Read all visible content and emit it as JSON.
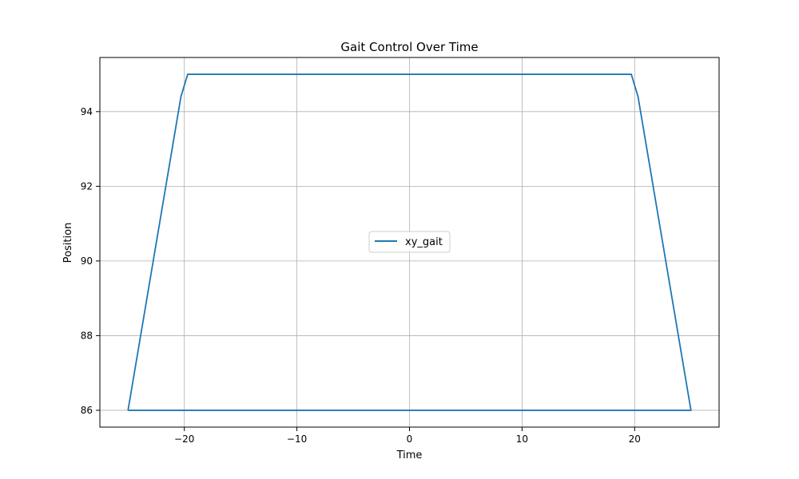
{
  "chart_data": {
    "type": "line",
    "title": "Gait Control Over Time",
    "xlabel": "Time",
    "ylabel": "Position",
    "xlim": [
      -27.5,
      27.5
    ],
    "ylim": [
      85.55,
      95.45
    ],
    "xticks": [
      -20,
      -10,
      0,
      10,
      20
    ],
    "yticks": [
      86,
      88,
      90,
      92,
      94
    ],
    "xtick_labels": [
      "−20",
      "−10",
      "0",
      "10",
      "20"
    ],
    "ytick_labels": [
      "86",
      "88",
      "90",
      "92",
      "94"
    ],
    "grid": true,
    "legend_position": "center",
    "series": [
      {
        "name": "xy_gait",
        "color": "#1f77b4",
        "x": [
          -25,
          -20.3,
          -19.7,
          19.7,
          20.3,
          25,
          -25
        ],
        "y": [
          86,
          94.4,
          95,
          95,
          94.4,
          86,
          86
        ]
      }
    ]
  }
}
